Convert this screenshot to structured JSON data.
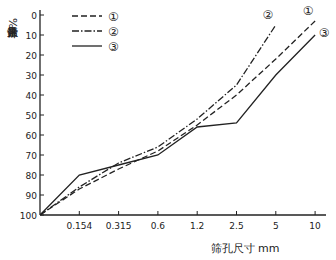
{
  "chart_data": {
    "type": "line",
    "x_label": "筛孔尺寸 mm",
    "y_label": "累计筛余量%",
    "categories": [
      null,
      "0.154",
      "0.315",
      "0.6",
      "1.2",
      "2.5",
      "5",
      "10"
    ],
    "ylim": [
      100,
      0
    ],
    "yticks": [
      0,
      10,
      20,
      30,
      40,
      50,
      60,
      70,
      80,
      90,
      100
    ],
    "grid": false,
    "legend": "upper left",
    "series": [
      {
        "name": "①",
        "color": "#222222",
        "line_style": "dashed",
        "values": [
          100,
          87,
          77,
          68,
          55,
          40,
          22,
          3
        ]
      },
      {
        "name": "②",
        "color": "#222222",
        "line_style": "dashdot",
        "values": [
          100,
          86,
          74,
          66,
          52,
          35,
          5,
          null
        ]
      },
      {
        "name": "③",
        "color": "#222222",
        "line_style": "solid",
        "values": [
          100,
          80,
          75,
          70,
          56,
          54,
          30,
          10
        ]
      }
    ]
  }
}
